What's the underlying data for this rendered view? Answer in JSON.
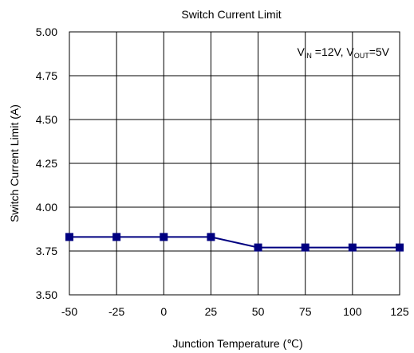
{
  "chart_data": {
    "type": "line",
    "title": "Switch Current Limit",
    "xlabel": "Junction Temperature (℃)",
    "ylabel": "Switch Current Limit (A)",
    "x": [
      -50,
      -25,
      0,
      25,
      50,
      75,
      100,
      125
    ],
    "xlim": [
      -50,
      125
    ],
    "ylim": [
      3.5,
      5.0
    ],
    "xticks": [
      "-50",
      "-25",
      "0",
      "25",
      "50",
      "75",
      "100",
      "125"
    ],
    "yticks": [
      "5.00",
      "4.75",
      "4.50",
      "4.25",
      "4.00",
      "3.75",
      "3.50"
    ],
    "grid": true,
    "series": [
      {
        "values": [
          3.83,
          3.83,
          3.83,
          3.83,
          3.77,
          3.77,
          3.77,
          3.77
        ],
        "color": "#000080",
        "marker": "square"
      }
    ],
    "annotation": {
      "v": "V",
      "in_sub": "IN",
      "mid": " =12V, V",
      "out_sub": "OUT",
      "tail": "=5V"
    }
  }
}
